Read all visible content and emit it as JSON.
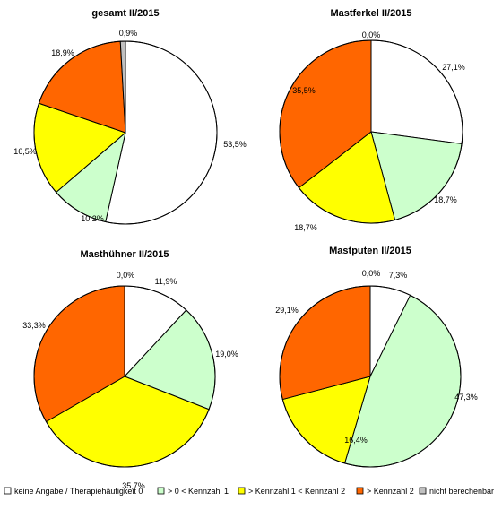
{
  "chart_data": [
    {
      "type": "pie",
      "title": "gesamt II/2015",
      "slices": [
        {
          "category": "keine Angabe / Therapiehäufigkeit 0",
          "value": 53.5,
          "label": "53,5%"
        },
        {
          "category": "> 0 < Kennzahl 1",
          "value": 10.2,
          "label": "10,2%"
        },
        {
          "category": "> Kennzahl 1 < Kennzahl 2",
          "value": 16.5,
          "label": "16,5%"
        },
        {
          "category": "> Kennzahl 2",
          "value": 18.9,
          "label": "18,9%"
        },
        {
          "category": "nicht berechenbar",
          "value": 0.9,
          "label": "0,9%"
        }
      ]
    },
    {
      "type": "pie",
      "title": "Mastferkel II/2015",
      "slices": [
        {
          "category": "keine Angabe / Therapiehäufigkeit 0",
          "value": 27.1,
          "label": "27,1%"
        },
        {
          "category": "> 0 < Kennzahl 1",
          "value": 18.7,
          "label": "18,7%"
        },
        {
          "category": "> Kennzahl 1 < Kennzahl 2",
          "value": 18.7,
          "label": "18,7%"
        },
        {
          "category": "> Kennzahl 2",
          "value": 35.5,
          "label": "35,5%"
        },
        {
          "category": "nicht berechenbar",
          "value": 0.0,
          "label": "0,0%"
        }
      ]
    },
    {
      "type": "pie",
      "title": "Masthühner II/2015",
      "slices": [
        {
          "category": "keine Angabe / Therapiehäufigkeit 0",
          "value": 11.9,
          "label": "11,9%"
        },
        {
          "category": "> 0 < Kennzahl 1",
          "value": 19.0,
          "label": "19,0%"
        },
        {
          "category": "> Kennzahl 1 < Kennzahl 2",
          "value": 35.7,
          "label": "35,7%"
        },
        {
          "category": "> Kennzahl 2",
          "value": 33.3,
          "label": "33,3%"
        },
        {
          "category": "nicht berechenbar",
          "value": 0.0,
          "label": "0,0%"
        }
      ]
    },
    {
      "type": "pie",
      "title": "Mastputen II/2015",
      "slices": [
        {
          "category": "keine Angabe / Therapiehäufigkeit 0",
          "value": 7.3,
          "label": "7,3%"
        },
        {
          "category": "> 0 < Kennzahl 1",
          "value": 47.3,
          "label": "47,3%"
        },
        {
          "category": "> Kennzahl 1 < Kennzahl 2",
          "value": 16.4,
          "label": "16,4%"
        },
        {
          "category": "> Kennzahl 2",
          "value": 29.1,
          "label": "29,1%"
        },
        {
          "category": "nicht berechenbar",
          "value": 0.0,
          "label": "0,0%"
        }
      ]
    }
  ],
  "legend": {
    "placement": "bottom",
    "items": [
      {
        "label": "keine Angabe / Therapiehäufigkeit 0",
        "color": "#ffffff"
      },
      {
        "label": "> 0 < Kennzahl 1",
        "color": "#ccffcc"
      },
      {
        "label": "> Kennzahl 1 < Kennzahl 2",
        "color": "#ffff00"
      },
      {
        "label": "> Kennzahl 2",
        "color": "#ff6600"
      },
      {
        "label": "nicht berechenbar",
        "color": "#c0c0c0"
      }
    ]
  }
}
